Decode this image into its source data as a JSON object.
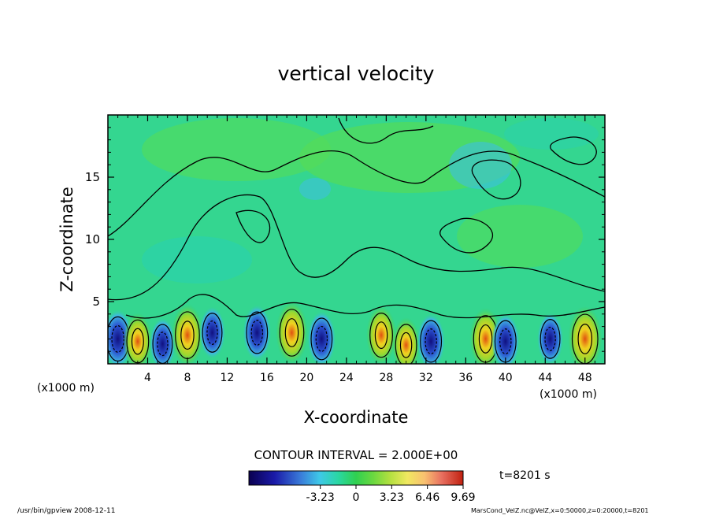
{
  "chart_data": {
    "type": "heatmap",
    "title": "vertical velocity",
    "xlabel": "X-coordinate",
    "ylabel": "Z-coordinate",
    "x_unit_left": "(x1000 m)",
    "x_unit_right": "(x1000 m)",
    "xlim": [
      0,
      50
    ],
    "ylim": [
      0,
      20
    ],
    "xticks": [
      4,
      8,
      12,
      16,
      20,
      24,
      28,
      32,
      36,
      40,
      44,
      48
    ],
    "yticks": [
      5,
      10,
      15
    ],
    "contour_interval_label": "CONTOUR INTERVAL = 2.000E+00",
    "contour_interval": 2.0,
    "time_label": "t=8201 s",
    "colorbar": {
      "range": [
        -9.69,
        9.69
      ],
      "ticks": [
        -3.23,
        0,
        3.23,
        6.46,
        9.69
      ],
      "tick_labels": [
        "-3.23",
        "0",
        "3.23",
        "6.46",
        "9.69"
      ]
    },
    "updraft_cores": [
      {
        "x": 1,
        "z": 2.0,
        "w": -7.0
      },
      {
        "x": 3,
        "z": 1.8,
        "w": 6.5
      },
      {
        "x": 5.5,
        "z": 1.6,
        "w": -5.0
      },
      {
        "x": 8,
        "z": 2.3,
        "w": 8.0
      },
      {
        "x": 10.5,
        "z": 2.5,
        "w": -5.0
      },
      {
        "x": 15,
        "z": 2.5,
        "w": -6.0
      },
      {
        "x": 18.5,
        "z": 2.5,
        "w": 8.0
      },
      {
        "x": 21.5,
        "z": 2.0,
        "w": -6.0
      },
      {
        "x": 27.5,
        "z": 2.3,
        "w": 7.0
      },
      {
        "x": 30,
        "z": 1.5,
        "w": 6.0
      },
      {
        "x": 32.5,
        "z": 1.8,
        "w": -6.0
      },
      {
        "x": 38,
        "z": 2.0,
        "w": 8.0
      },
      {
        "x": 40,
        "z": 1.8,
        "w": -6.0
      },
      {
        "x": 44.5,
        "z": 2.0,
        "w": -5.0
      },
      {
        "x": 48,
        "z": 2.0,
        "w": 9.0
      }
    ]
  },
  "footer": {
    "left": "/usr/bin/gpview  2008-12-11",
    "right": "MarsCond_VelZ.nc@VelZ,x=0:50000,z=0:20000,t=8201"
  }
}
